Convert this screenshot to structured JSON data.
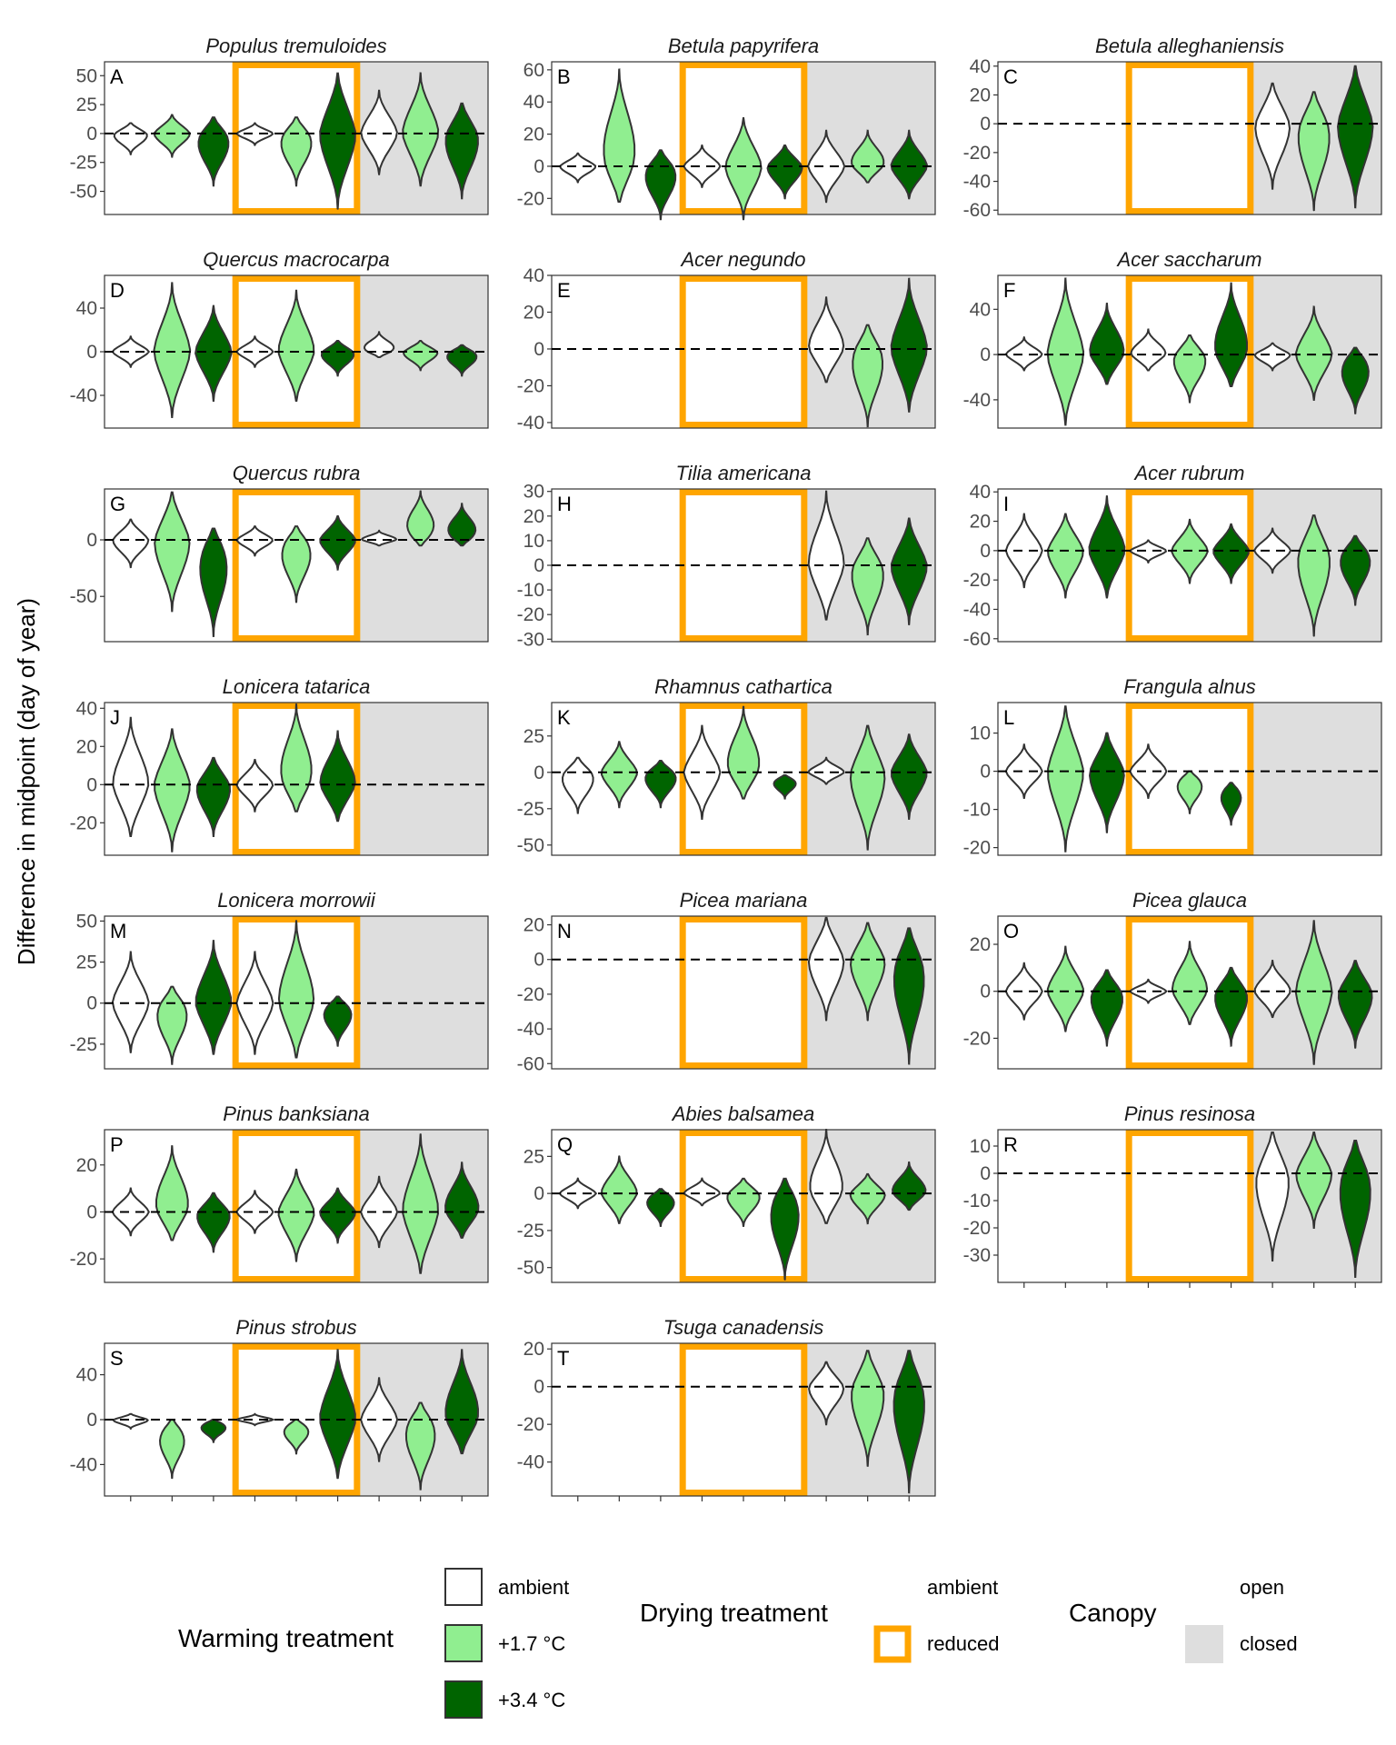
{
  "figure": {
    "ylabel": "Difference in midpoint (day of year)"
  },
  "colors": {
    "ambient_fill": "#ffffff",
    "warm17_fill": "#90ee90",
    "warm34_fill": "#006400",
    "violin_stroke": "#333333",
    "drying_border": "#ffa500",
    "closed_bg": "#dedede",
    "panel_border": "#333333"
  },
  "legend": {
    "warming": {
      "title": "Warming treatment",
      "items": [
        {
          "label": "ambient",
          "color": "#ffffff"
        },
        {
          "label": "+1.7 °C",
          "color": "#90ee90"
        },
        {
          "label": "+3.4 °C",
          "color": "#006400"
        }
      ]
    },
    "drying": {
      "title": "Drying treatment",
      "items": [
        {
          "label": "ambient",
          "style": "none"
        },
        {
          "label": "reduced",
          "style": "orange-border"
        }
      ]
    },
    "canopy": {
      "title": "Canopy",
      "items": [
        {
          "label": "open",
          "color": "none"
        },
        {
          "label": "closed",
          "color": "#dedede"
        }
      ]
    }
  },
  "chart_data": {
    "type": "violin",
    "x_groups": [
      {
        "canopy": "open",
        "drying": "ambient",
        "warming": [
          "ambient",
          "+1.7 °C",
          "+3.4 °C"
        ]
      },
      {
        "canopy": "open",
        "drying": "reduced",
        "warming": [
          "ambient",
          "+1.7 °C",
          "+3.4 °C"
        ]
      },
      {
        "canopy": "closed",
        "drying": "ambient",
        "warming": [
          "ambient",
          "+1.7 °C",
          "+3.4 °C"
        ]
      }
    ],
    "reference_line": 0,
    "panels": [
      {
        "letter": "A",
        "species": "Populus tremuloides",
        "ylim": [
          -70,
          62
        ],
        "yticks": [
          50,
          25,
          0,
          -25,
          -50
        ],
        "violins": [
          [
            -18,
            9
          ],
          [
            -20,
            16
          ],
          [
            -45,
            14
          ],
          [
            -10,
            9
          ],
          [
            -45,
            14
          ],
          [
            -65,
            52
          ],
          [
            -35,
            37
          ],
          [
            -45,
            52
          ],
          [
            -56,
            26
          ]
        ]
      },
      {
        "letter": "B",
        "species": "Betula papyrifera",
        "ylim": [
          -30,
          65
        ],
        "yticks": [
          60,
          40,
          20,
          0,
          -20
        ],
        "violins": [
          [
            -10,
            8
          ],
          [
            -22,
            60
          ],
          [
            -33,
            10
          ],
          [
            -13,
            13
          ],
          [
            -33,
            30
          ],
          [
            -20,
            13
          ],
          [
            -22,
            22
          ],
          [
            -10,
            22
          ],
          [
            -20,
            22
          ]
        ]
      },
      {
        "letter": "C",
        "species": "Betula alleghaniensis",
        "ylim": [
          -63,
          43
        ],
        "yticks": [
          40,
          20,
          0,
          -20,
          -40,
          -60
        ],
        "violins": [
          null,
          null,
          null,
          null,
          null,
          null,
          [
            -45,
            28
          ],
          [
            -60,
            22
          ],
          [
            -58,
            40
          ]
        ]
      },
      {
        "letter": "D",
        "species": "Quercus macrocarpa",
        "ylim": [
          -70,
          70
        ],
        "yticks": [
          40,
          0,
          -40
        ],
        "violins": [
          [
            -14,
            14
          ],
          [
            -60,
            63
          ],
          [
            -45,
            42
          ],
          [
            -14,
            14
          ],
          [
            -45,
            56
          ],
          [
            -22,
            10
          ],
          [
            -5,
            18
          ],
          [
            -17,
            10
          ],
          [
            -22,
            6
          ]
        ]
      },
      {
        "letter": "E",
        "species": "Acer negundo",
        "ylim": [
          -43,
          40
        ],
        "yticks": [
          40,
          20,
          0,
          -20,
          -40
        ],
        "violins": [
          null,
          null,
          null,
          null,
          null,
          null,
          [
            -18,
            28
          ],
          [
            -42,
            13
          ],
          [
            -34,
            38
          ]
        ]
      },
      {
        "letter": "F",
        "species": "Acer saccharum",
        "ylim": [
          -65,
          70
        ],
        "yticks": [
          40,
          0,
          -40
        ],
        "violins": [
          [
            -14,
            15
          ],
          [
            -62,
            67
          ],
          [
            -26,
            45
          ],
          [
            -14,
            22
          ],
          [
            -42,
            17
          ],
          [
            -28,
            63
          ],
          [
            -14,
            10
          ],
          [
            -40,
            42
          ],
          [
            -52,
            6
          ]
        ]
      },
      {
        "letter": "G",
        "species": "Quercus rubra",
        "ylim": [
          -90,
          45
        ],
        "yticks": [
          0,
          -50
        ],
        "violins": [
          [
            -24,
            18
          ],
          [
            -63,
            42
          ],
          [
            -85,
            10
          ],
          [
            -14,
            12
          ],
          [
            -55,
            12
          ],
          [
            -26,
            21
          ],
          [
            -5,
            8
          ],
          [
            -5,
            43
          ],
          [
            -5,
            32
          ]
        ]
      },
      {
        "letter": "H",
        "species": "Tilia americana",
        "ylim": [
          -31,
          31
        ],
        "yticks": [
          30,
          20,
          10,
          0,
          -10,
          -20,
          -30
        ],
        "violins": [
          null,
          null,
          null,
          null,
          null,
          null,
          [
            -22,
            30
          ],
          [
            -28,
            11
          ],
          [
            -24,
            19
          ]
        ]
      },
      {
        "letter": "I",
        "species": "Acer rubrum",
        "ylim": [
          -62,
          42
        ],
        "yticks": [
          40,
          20,
          0,
          -20,
          -40,
          -60
        ],
        "violins": [
          [
            -25,
            25
          ],
          [
            -32,
            25
          ],
          [
            -32,
            37
          ],
          [
            -8,
            7
          ],
          [
            -22,
            21
          ],
          [
            -22,
            18
          ],
          [
            -15,
            15
          ],
          [
            -58,
            24
          ],
          [
            -37,
            10
          ]
        ]
      },
      {
        "letter": "J",
        "species": "Lonicera tatarica",
        "ylim": [
          -37,
          43
        ],
        "yticks": [
          40,
          20,
          0,
          -20
        ],
        "violins": [
          [
            -27,
            35
          ],
          [
            -35,
            29
          ],
          [
            -27,
            14
          ],
          [
            -14,
            13
          ],
          [
            -14,
            42
          ],
          [
            -19,
            28
          ],
          null,
          null,
          null
        ]
      },
      {
        "letter": "K",
        "species": "Rhamnus cathartica",
        "ylim": [
          -57,
          48
        ],
        "yticks": [
          25,
          0,
          -25,
          -50
        ],
        "violins": [
          [
            -28,
            10
          ],
          [
            -24,
            21
          ],
          [
            -24,
            8
          ],
          [
            -32,
            32
          ],
          [
            -18,
            45
          ],
          [
            -18,
            -2
          ],
          [
            -8,
            10
          ],
          [
            -53,
            32
          ],
          [
            -32,
            26
          ]
        ]
      },
      {
        "letter": "L",
        "species": "Frangula alnus",
        "ylim": [
          -22,
          18
        ],
        "yticks": [
          10,
          0,
          -10,
          -20
        ],
        "violins": [
          [
            -7,
            7
          ],
          [
            -21,
            17
          ],
          [
            -16,
            10
          ],
          [
            -7,
            7
          ],
          [
            -11,
            0
          ],
          [
            -14,
            -3
          ],
          null,
          null,
          null
        ]
      },
      {
        "letter": "M",
        "species": "Lonicera morrowii",
        "ylim": [
          -40,
          53
        ],
        "yticks": [
          50,
          25,
          0,
          -25
        ],
        "violins": [
          [
            -30,
            31
          ],
          [
            -37,
            10
          ],
          [
            -31,
            38
          ],
          [
            -31,
            31
          ],
          [
            -33,
            50
          ],
          [
            -26,
            4
          ],
          null,
          null,
          null
        ]
      },
      {
        "letter": "N",
        "species": "Picea mariana",
        "ylim": [
          -63,
          25
        ],
        "yticks": [
          20,
          0,
          -20,
          -40,
          -60
        ],
        "violins": [
          null,
          null,
          null,
          null,
          null,
          null,
          [
            -35,
            24
          ],
          [
            -35,
            21
          ],
          [
            -60,
            18
          ]
        ]
      },
      {
        "letter": "O",
        "species": "Picea glauca",
        "ylim": [
          -33,
          32
        ],
        "yticks": [
          20,
          0,
          -20
        ],
        "violins": [
          [
            -12,
            12
          ],
          [
            -17,
            19
          ],
          [
            -23,
            9
          ],
          [
            -5,
            5
          ],
          [
            -14,
            21
          ],
          [
            -23,
            10
          ],
          [
            -11,
            13
          ],
          [
            -31,
            30
          ],
          [
            -24,
            13
          ]
        ]
      },
      {
        "letter": "P",
        "species": "Pinus banksiana",
        "ylim": [
          -30,
          35
        ],
        "yticks": [
          20,
          0,
          -20
        ],
        "violins": [
          [
            -10,
            10
          ],
          [
            -12,
            28
          ],
          [
            -17,
            8
          ],
          [
            -9,
            9
          ],
          [
            -21,
            18
          ],
          [
            -13,
            10
          ],
          [
            -15,
            15
          ],
          [
            -26,
            33
          ],
          [
            -11,
            21
          ]
        ]
      },
      {
        "letter": "Q",
        "species": "Abies balsamea",
        "ylim": [
          -60,
          43
        ],
        "yticks": [
          25,
          0,
          -25,
          -50
        ],
        "violins": [
          [
            -10,
            10
          ],
          [
            -20,
            25
          ],
          [
            -22,
            3
          ],
          [
            -8,
            10
          ],
          [
            -22,
            10
          ],
          [
            -58,
            10
          ],
          [
            -20,
            43
          ],
          [
            -20,
            13
          ],
          [
            -11,
            21
          ]
        ]
      },
      {
        "letter": "R",
        "species": "Pinus resinosa",
        "ylim": [
          -40,
          16
        ],
        "yticks": [
          10,
          0,
          -10,
          -20,
          -30
        ],
        "violins": [
          null,
          null,
          null,
          null,
          null,
          null,
          [
            -32,
            15
          ],
          [
            -20,
            15
          ],
          [
            -38,
            12
          ]
        ]
      },
      {
        "letter": "S",
        "species": "Pinus strobus",
        "ylim": [
          -68,
          68
        ],
        "yticks": [
          40,
          0,
          -40
        ],
        "violins": [
          [
            -8,
            5
          ],
          [
            -52,
            0
          ],
          [
            -20,
            0
          ],
          [
            -5,
            5
          ],
          [
            -30,
            0
          ],
          [
            -52,
            62
          ],
          [
            -37,
            37
          ],
          [
            -62,
            15
          ],
          [
            -30,
            62
          ]
        ]
      },
      {
        "letter": "T",
        "species": "Tsuga canadensis",
        "ylim": [
          -58,
          23
        ],
        "yticks": [
          20,
          0,
          -20,
          -40
        ],
        "violins": [
          null,
          null,
          null,
          null,
          null,
          null,
          [
            -20,
            13
          ],
          [
            -42,
            19
          ],
          [
            -56,
            19
          ]
        ]
      }
    ]
  }
}
